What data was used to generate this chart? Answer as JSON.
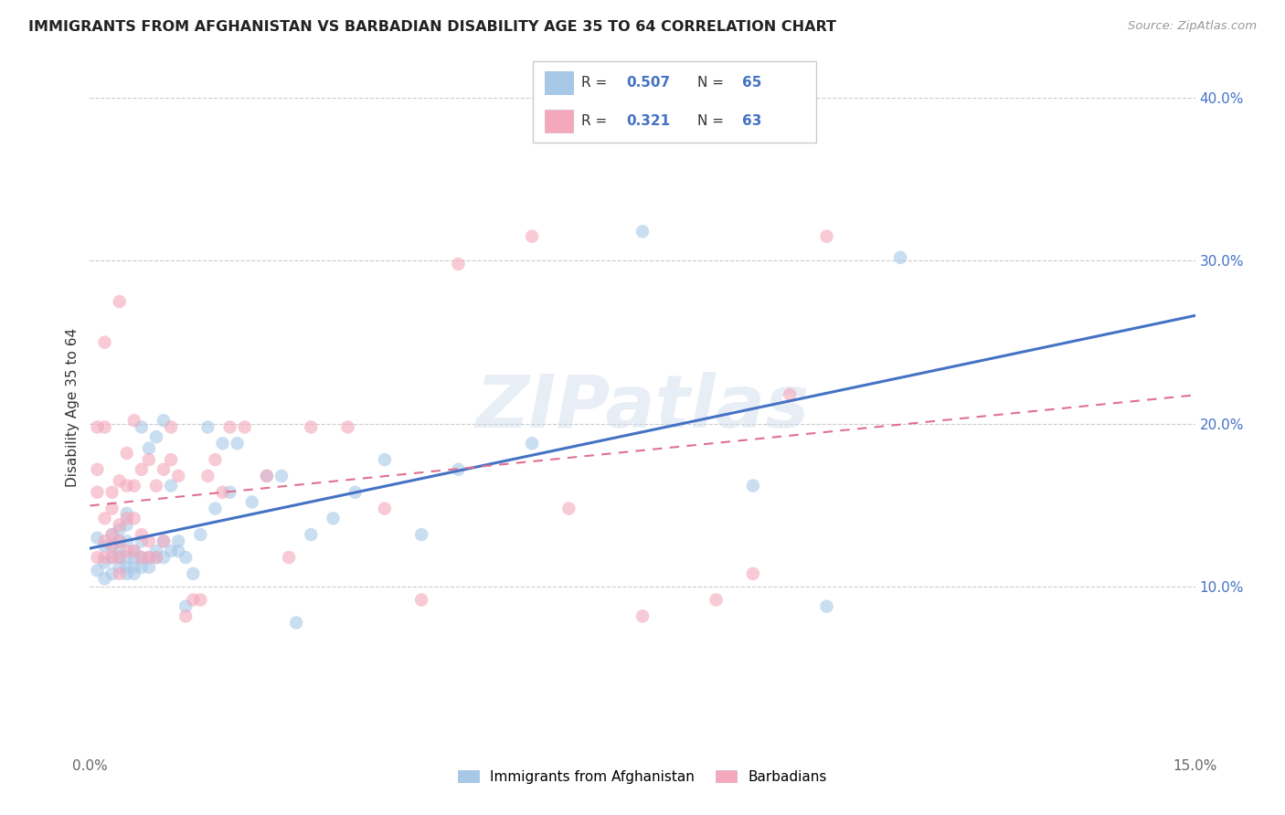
{
  "title": "IMMIGRANTS FROM AFGHANISTAN VS BARBADIAN DISABILITY AGE 35 TO 64 CORRELATION CHART",
  "source": "Source: ZipAtlas.com",
  "ylabel": "Disability Age 35 to 64",
  "xlim": [
    0.0,
    0.15
  ],
  "ylim": [
    0.0,
    0.42
  ],
  "yticks_right": [
    0.1,
    0.2,
    0.3,
    0.4
  ],
  "ytick_labels_right": [
    "10.0%",
    "20.0%",
    "30.0%",
    "40.0%"
  ],
  "bottom_legend": [
    "Immigrants from Afghanistan",
    "Barbadians"
  ],
  "blue_color": "#a8c8e8",
  "pink_color": "#f4a8bc",
  "blue_line_color": "#4472c4",
  "pink_line_color": "#e07090",
  "watermark": "ZIPatlas",
  "blue_scatter_x": [
    0.001,
    0.001,
    0.002,
    0.002,
    0.002,
    0.003,
    0.003,
    0.003,
    0.003,
    0.004,
    0.004,
    0.004,
    0.004,
    0.004,
    0.005,
    0.005,
    0.005,
    0.005,
    0.005,
    0.005,
    0.006,
    0.006,
    0.006,
    0.006,
    0.007,
    0.007,
    0.007,
    0.007,
    0.008,
    0.008,
    0.008,
    0.009,
    0.009,
    0.009,
    0.01,
    0.01,
    0.01,
    0.011,
    0.011,
    0.012,
    0.012,
    0.013,
    0.013,
    0.014,
    0.015,
    0.016,
    0.017,
    0.018,
    0.019,
    0.02,
    0.022,
    0.024,
    0.026,
    0.028,
    0.03,
    0.033,
    0.036,
    0.04,
    0.045,
    0.05,
    0.06,
    0.075,
    0.09,
    0.1,
    0.11
  ],
  "blue_scatter_y": [
    0.11,
    0.13,
    0.105,
    0.115,
    0.125,
    0.108,
    0.118,
    0.125,
    0.132,
    0.112,
    0.118,
    0.122,
    0.128,
    0.135,
    0.108,
    0.112,
    0.118,
    0.128,
    0.138,
    0.145,
    0.108,
    0.112,
    0.118,
    0.122,
    0.112,
    0.118,
    0.128,
    0.198,
    0.112,
    0.118,
    0.185,
    0.118,
    0.122,
    0.192,
    0.118,
    0.128,
    0.202,
    0.122,
    0.162,
    0.122,
    0.128,
    0.118,
    0.088,
    0.108,
    0.132,
    0.198,
    0.148,
    0.188,
    0.158,
    0.188,
    0.152,
    0.168,
    0.168,
    0.078,
    0.132,
    0.142,
    0.158,
    0.178,
    0.132,
    0.172,
    0.188,
    0.318,
    0.162,
    0.088,
    0.302
  ],
  "pink_scatter_x": [
    0.001,
    0.001,
    0.001,
    0.001,
    0.002,
    0.002,
    0.002,
    0.002,
    0.002,
    0.003,
    0.003,
    0.003,
    0.003,
    0.003,
    0.004,
    0.004,
    0.004,
    0.004,
    0.004,
    0.005,
    0.005,
    0.005,
    0.005,
    0.006,
    0.006,
    0.006,
    0.006,
    0.007,
    0.007,
    0.007,
    0.008,
    0.008,
    0.008,
    0.009,
    0.009,
    0.01,
    0.01,
    0.011,
    0.011,
    0.012,
    0.013,
    0.014,
    0.015,
    0.016,
    0.017,
    0.018,
    0.019,
    0.021,
    0.024,
    0.027,
    0.03,
    0.035,
    0.04,
    0.045,
    0.05,
    0.06,
    0.065,
    0.075,
    0.085,
    0.09,
    0.095,
    0.1,
    0.004
  ],
  "pink_scatter_y": [
    0.118,
    0.158,
    0.172,
    0.198,
    0.118,
    0.128,
    0.142,
    0.198,
    0.25,
    0.118,
    0.125,
    0.132,
    0.148,
    0.158,
    0.108,
    0.118,
    0.128,
    0.138,
    0.165,
    0.122,
    0.142,
    0.162,
    0.182,
    0.122,
    0.142,
    0.162,
    0.202,
    0.118,
    0.132,
    0.172,
    0.118,
    0.128,
    0.178,
    0.118,
    0.162,
    0.128,
    0.172,
    0.178,
    0.198,
    0.168,
    0.082,
    0.092,
    0.092,
    0.168,
    0.178,
    0.158,
    0.198,
    0.198,
    0.168,
    0.118,
    0.198,
    0.198,
    0.148,
    0.092,
    0.298,
    0.315,
    0.148,
    0.082,
    0.092,
    0.108,
    0.218,
    0.315,
    0.275
  ]
}
